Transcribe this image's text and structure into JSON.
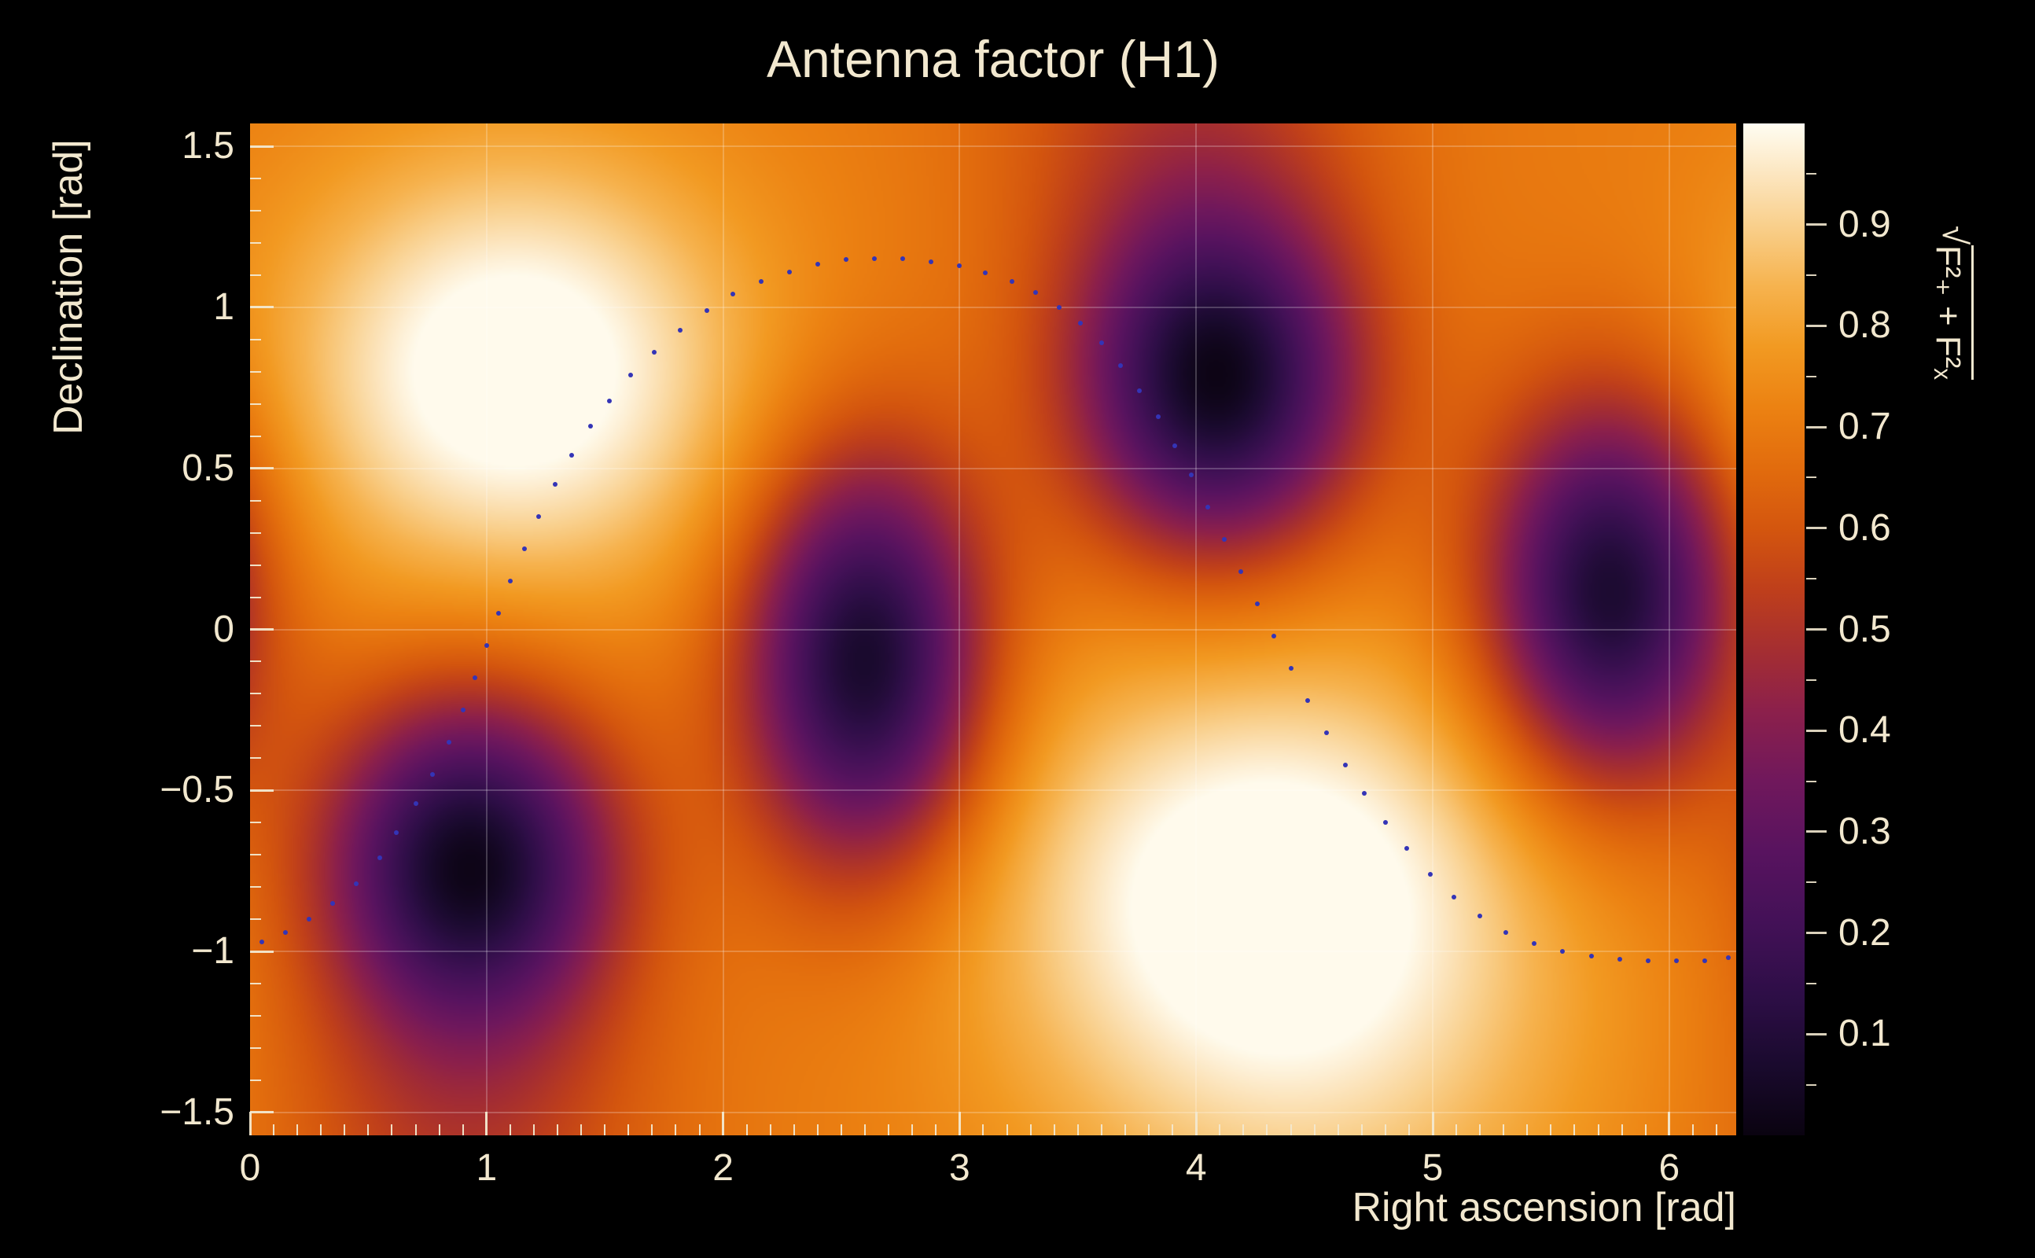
{
  "figure": {
    "background_color": "#000000",
    "text_color": "#f2e8cf"
  },
  "chart_data": {
    "type": "heatmap",
    "title": "Antenna factor (H1)",
    "xlabel": "Right ascension [rad]",
    "ylabel": "Declination [rad]",
    "zlabel": "√(F₊² + F×²)",
    "zlabel_radical": "√",
    "zlabel_expr": "F²₊ + F²ₓ",
    "xlim": [
      0,
      6.2832
    ],
    "ylim": [
      -1.5708,
      1.5708
    ],
    "zlim": [
      0,
      1
    ],
    "grid": true,
    "grid_color": "#ffffff",
    "grid_opacity": 0.22,
    "tick_color": "#f2e8cf",
    "x_ticks": {
      "values": [
        0,
        1,
        2,
        3,
        4,
        5,
        6
      ],
      "labels": [
        "0",
        "1",
        "2",
        "3",
        "4",
        "5",
        "6"
      ],
      "minor_step": 0.1
    },
    "y_ticks": {
      "values": [
        -1.5,
        -1,
        -0.5,
        0,
        0.5,
        1,
        1.5
      ],
      "labels": [
        "−1.5",
        "−1",
        "−0.5",
        "0",
        "0.5",
        "1",
        "1.5"
      ],
      "minor_step": 0.1
    },
    "z_ticks": {
      "values": [
        0.1,
        0.2,
        0.3,
        0.4,
        0.5,
        0.6,
        0.7,
        0.8,
        0.9
      ],
      "labels": [
        "0.1",
        "0.2",
        "0.3",
        "0.4",
        "0.5",
        "0.6",
        "0.7",
        "0.8",
        "0.9"
      ],
      "minor_step": 0.05
    },
    "colormap": [
      [
        0.0,
        "#0a0310"
      ],
      [
        0.07,
        "#1a0a2e"
      ],
      [
        0.14,
        "#2e0e47"
      ],
      [
        0.21,
        "#431157"
      ],
      [
        0.28,
        "#58135f"
      ],
      [
        0.35,
        "#70185c"
      ],
      [
        0.42,
        "#8c204b"
      ],
      [
        0.48,
        "#a52e31"
      ],
      [
        0.54,
        "#bf3f1b"
      ],
      [
        0.6,
        "#d4560e"
      ],
      [
        0.66,
        "#e26c0d"
      ],
      [
        0.72,
        "#ec8212"
      ],
      [
        0.78,
        "#f29a22"
      ],
      [
        0.84,
        "#f6b34f"
      ],
      [
        0.9,
        "#f9d08d"
      ],
      [
        0.95,
        "#fce6c0"
      ],
      [
        1.0,
        "#fffdf2"
      ]
    ],
    "field": {
      "base": 0.7,
      "blobs": [
        {
          "ra": 1.12,
          "dec": 0.8,
          "amp": 0.36,
          "sx": 0.68,
          "sy": 0.47
        },
        {
          "ra": 4.3,
          "dec": -0.8,
          "amp": 0.36,
          "sx": 0.8,
          "sy": 0.5
        },
        {
          "ra": 4.55,
          "dec": -1.55,
          "amp": 0.1,
          "sx": 0.85,
          "sy": 0.45
        },
        {
          "ra": 0.93,
          "dec": -0.72,
          "amp": -0.65,
          "sx": 0.42,
          "sy": 0.36
        },
        {
          "ra": 2.6,
          "dec": -0.1,
          "amp": -0.65,
          "sx": 0.35,
          "sy": 0.44
        },
        {
          "ra": 4.09,
          "dec": 0.76,
          "amp": -0.65,
          "sx": 0.41,
          "sy": 0.37
        },
        {
          "ra": 5.75,
          "dec": 0.11,
          "amp": -0.64,
          "sx": 0.36,
          "sy": 0.41
        },
        {
          "ra": 3.95,
          "dec": 1.6,
          "amp": -0.16,
          "sx": 0.55,
          "sy": 0.5
        },
        {
          "ra": 0.9,
          "dec": -1.6,
          "amp": -0.16,
          "sx": 0.55,
          "sy": 0.5
        }
      ]
    },
    "extrema": {
      "maxima": [
        {
          "ra": 1.12,
          "dec": 0.8,
          "value": 1.0
        },
        {
          "ra": 4.3,
          "dec": -0.8,
          "value": 1.0
        }
      ],
      "minima": [
        {
          "ra": 0.93,
          "dec": -0.72,
          "value": 0.05
        },
        {
          "ra": 2.6,
          "dec": -0.1,
          "value": 0.05
        },
        {
          "ra": 4.09,
          "dec": 0.76,
          "value": 0.05
        },
        {
          "ra": 5.75,
          "dec": 0.11,
          "value": 0.05
        }
      ]
    },
    "track": {
      "color": "#3434b6",
      "points": [
        [
          0.05,
          -0.97
        ],
        [
          0.15,
          -0.94
        ],
        [
          0.25,
          -0.9
        ],
        [
          0.35,
          -0.85
        ],
        [
          0.45,
          -0.79
        ],
        [
          0.55,
          -0.71
        ],
        [
          0.62,
          -0.63
        ],
        [
          0.7,
          -0.54
        ],
        [
          0.77,
          -0.45
        ],
        [
          0.84,
          -0.35
        ],
        [
          0.9,
          -0.25
        ],
        [
          0.95,
          -0.15
        ],
        [
          1.0,
          -0.05
        ],
        [
          1.05,
          0.05
        ],
        [
          1.1,
          0.15
        ],
        [
          1.16,
          0.25
        ],
        [
          1.22,
          0.35
        ],
        [
          1.29,
          0.45
        ],
        [
          1.36,
          0.54
        ],
        [
          1.44,
          0.63
        ],
        [
          1.52,
          0.71
        ],
        [
          1.61,
          0.79
        ],
        [
          1.71,
          0.86
        ],
        [
          1.82,
          0.93
        ],
        [
          1.93,
          0.99
        ],
        [
          2.04,
          1.04
        ],
        [
          2.16,
          1.08
        ],
        [
          2.28,
          1.11
        ],
        [
          2.4,
          1.135
        ],
        [
          2.52,
          1.148
        ],
        [
          2.64,
          1.152
        ],
        [
          2.76,
          1.15
        ],
        [
          2.88,
          1.142
        ],
        [
          3.0,
          1.128
        ],
        [
          3.11,
          1.108
        ],
        [
          3.22,
          1.08
        ],
        [
          3.32,
          1.045
        ],
        [
          3.42,
          1.0
        ],
        [
          3.51,
          0.95
        ],
        [
          3.6,
          0.89
        ],
        [
          3.68,
          0.82
        ],
        [
          3.76,
          0.74
        ],
        [
          3.84,
          0.66
        ],
        [
          3.91,
          0.57
        ],
        [
          3.98,
          0.48
        ],
        [
          4.05,
          0.38
        ],
        [
          4.12,
          0.28
        ],
        [
          4.19,
          0.18
        ],
        [
          4.26,
          0.08
        ],
        [
          4.33,
          -0.02
        ],
        [
          4.4,
          -0.12
        ],
        [
          4.47,
          -0.22
        ],
        [
          4.55,
          -0.32
        ],
        [
          4.63,
          -0.42
        ],
        [
          4.71,
          -0.51
        ],
        [
          4.8,
          -0.6
        ],
        [
          4.89,
          -0.68
        ],
        [
          4.99,
          -0.76
        ],
        [
          5.09,
          -0.83
        ],
        [
          5.2,
          -0.89
        ],
        [
          5.31,
          -0.94
        ],
        [
          5.43,
          -0.975
        ],
        [
          5.55,
          -1.0
        ],
        [
          5.67,
          -1.015
        ],
        [
          5.79,
          -1.025
        ],
        [
          5.91,
          -1.03
        ],
        [
          6.03,
          -1.03
        ],
        [
          6.15,
          -1.028
        ],
        [
          6.25,
          -1.02
        ]
      ]
    }
  }
}
